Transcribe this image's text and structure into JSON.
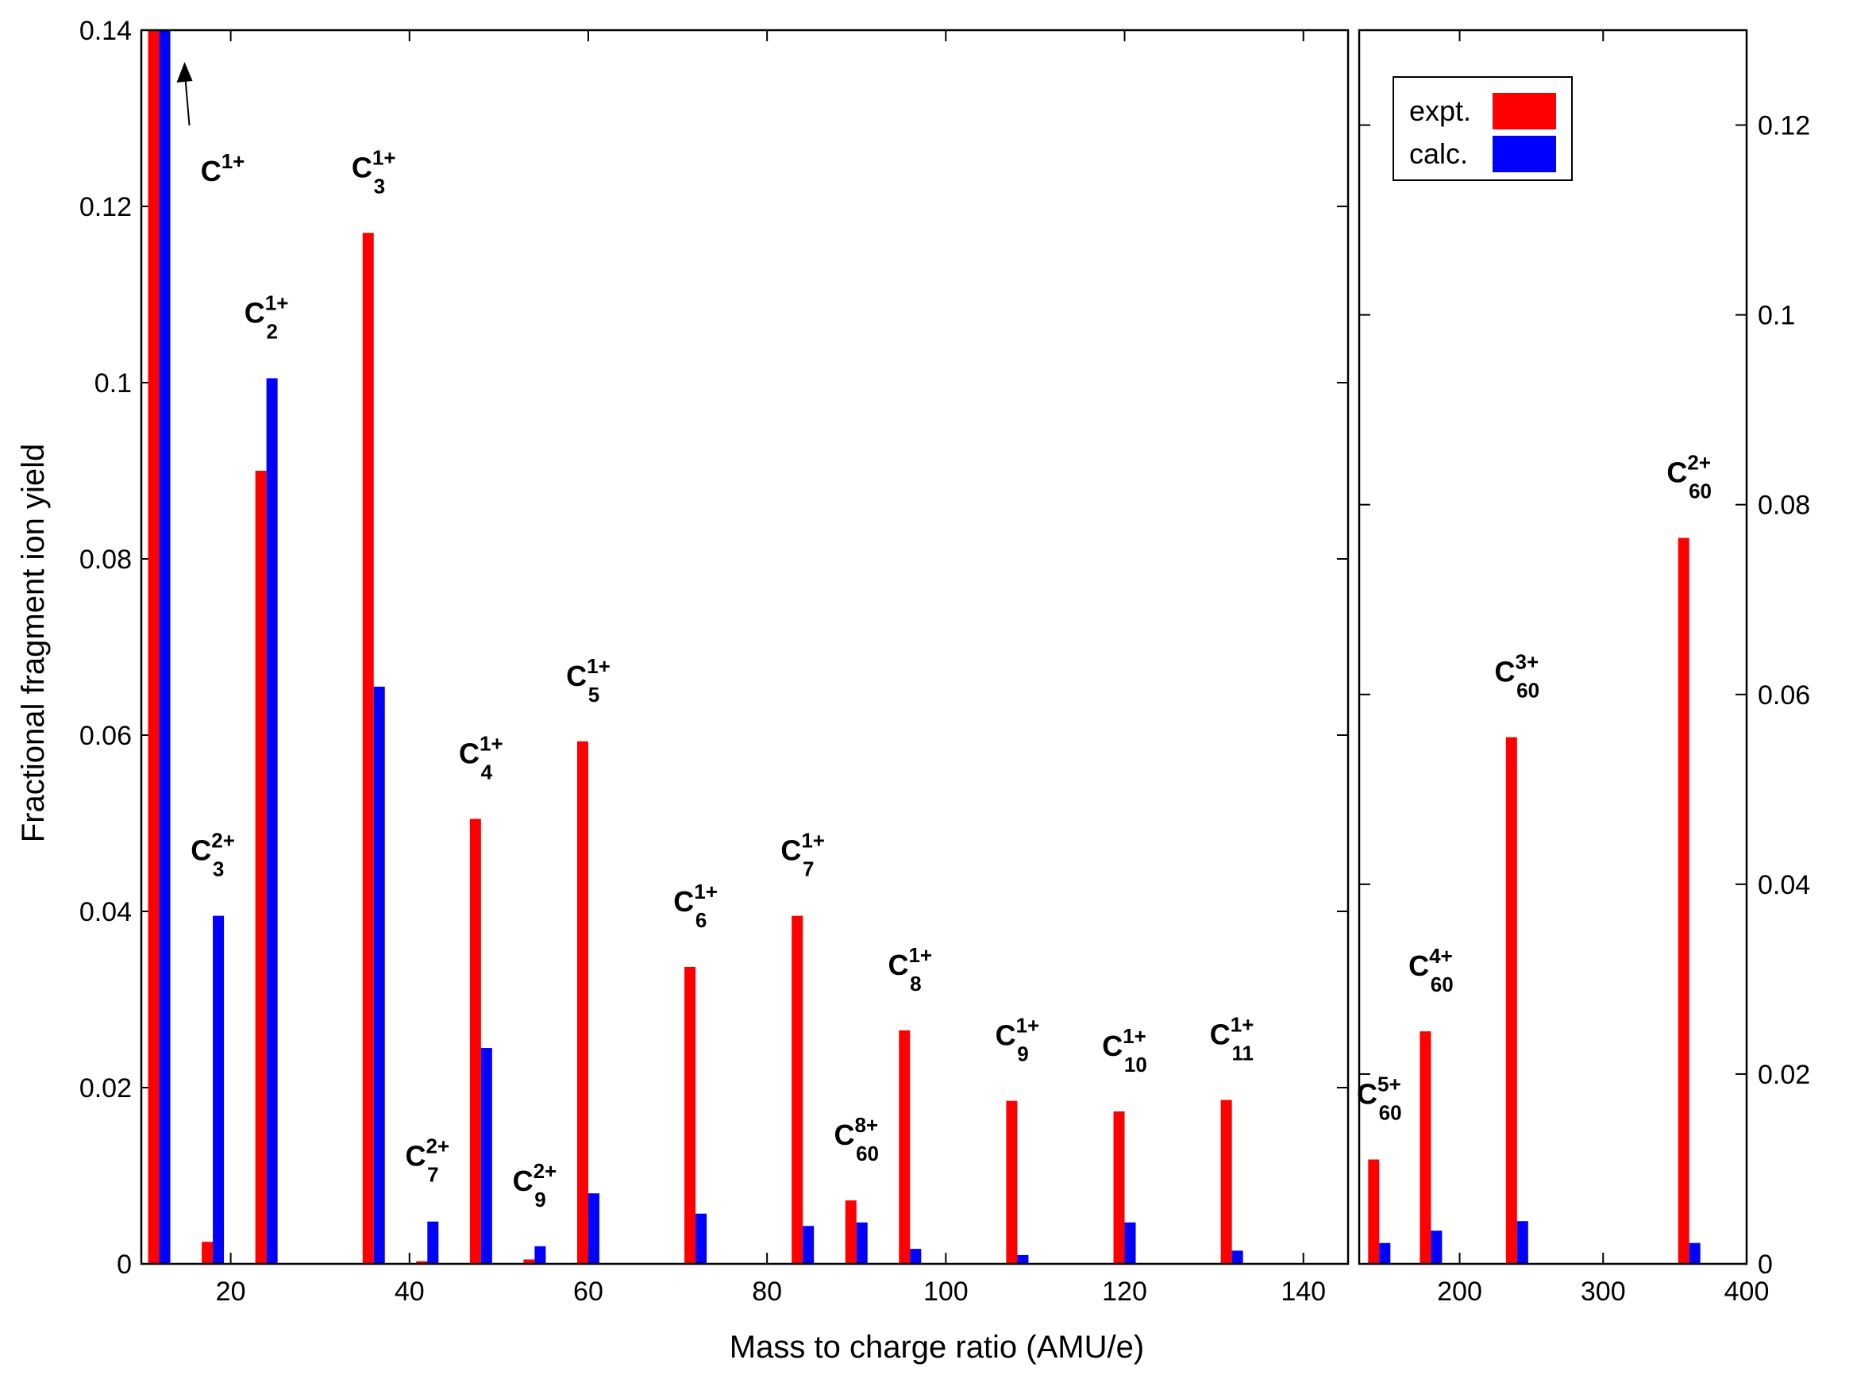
{
  "chart_data": {
    "type": "bar",
    "xlabel": "Mass to charge ratio (AMU/e)",
    "ylabel": "Fractional fragment ion yield",
    "legend": {
      "placement": "top-right",
      "entries": [
        {
          "name": "expt.",
          "color": "#ff0000"
        },
        {
          "name": "calc.",
          "color": "#0000ff"
        }
      ]
    },
    "left_panel": {
      "xlim": [
        10,
        145
      ],
      "ylim": [
        0,
        0.14
      ],
      "xticks": [
        20,
        40,
        60,
        80,
        100,
        120,
        140
      ],
      "yticks": [
        0,
        0.02,
        0.04,
        0.06,
        0.08,
        0.1,
        0.12,
        0.14
      ],
      "ytick_labels": [
        "0",
        "0.02",
        "0.04",
        "0.06",
        "0.08",
        "0.1",
        "0.12",
        "0.14"
      ],
      "points": [
        {
          "mz": 12,
          "expt": 0.14,
          "calc": 0.14,
          "ion": "C",
          "sub": "",
          "sup": "1+",
          "arrow": true
        },
        {
          "mz": 18,
          "expt": 0.0025,
          "calc": 0.0395,
          "ion": "C",
          "sub": "3",
          "sup": "2+"
        },
        {
          "mz": 24,
          "expt": 0.09,
          "calc": 0.1005,
          "ion": "C",
          "sub": "2",
          "sup": "1+"
        },
        {
          "mz": 36,
          "expt": 0.117,
          "calc": 0.0655,
          "ion": "C",
          "sub": "3",
          "sup": "1+"
        },
        {
          "mz": 42,
          "expt": 0.0003,
          "calc": 0.0048,
          "ion": "C",
          "sub": "7",
          "sup": "2+"
        },
        {
          "mz": 48,
          "expt": 0.0505,
          "calc": 0.0245,
          "ion": "C",
          "sub": "4",
          "sup": "1+"
        },
        {
          "mz": 54,
          "expt": 0.0005,
          "calc": 0.002,
          "ion": "C",
          "sub": "9",
          "sup": "2+"
        },
        {
          "mz": 60,
          "expt": 0.0593,
          "calc": 0.008,
          "ion": "C",
          "sub": "5",
          "sup": "1+"
        },
        {
          "mz": 72,
          "expt": 0.0337,
          "calc": 0.0057,
          "ion": "C",
          "sub": "6",
          "sup": "1+"
        },
        {
          "mz": 84,
          "expt": 0.0395,
          "calc": 0.0043,
          "ion": "C",
          "sub": "7",
          "sup": "1+"
        },
        {
          "mz": 90,
          "expt": 0.0072,
          "calc": 0.0047,
          "ion": "C",
          "sub": "60",
          "sup": "8+"
        },
        {
          "mz": 96,
          "expt": 0.0265,
          "calc": 0.0017,
          "ion": "C",
          "sub": "8",
          "sup": "1+"
        },
        {
          "mz": 108,
          "expt": 0.0185,
          "calc": 0.001,
          "ion": "C",
          "sub": "9",
          "sup": "1+"
        },
        {
          "mz": 120,
          "expt": 0.0173,
          "calc": 0.0047,
          "ion": "C",
          "sub": "10",
          "sup": "1+"
        },
        {
          "mz": 132,
          "expt": 0.0186,
          "calc": 0.0015,
          "ion": "C",
          "sub": "11",
          "sup": "1+"
        }
      ]
    },
    "right_panel": {
      "xlim": [
        130,
        400
      ],
      "ylim": [
        0,
        0.13
      ],
      "xticks": [
        200,
        300,
        400
      ],
      "yticks": [
        0,
        0.02,
        0.04,
        0.06,
        0.08,
        0.1,
        0.12
      ],
      "ytick_labels": [
        "0",
        "0.02",
        "0.04",
        "0.06",
        "0.08",
        "0.1",
        "0.12"
      ],
      "points": [
        {
          "mz": 144,
          "expt": 0.011,
          "calc": 0.0022,
          "ion": "C",
          "sub": "60",
          "sup": "5+"
        },
        {
          "mz": 180,
          "expt": 0.0245,
          "calc": 0.0035,
          "ion": "C",
          "sub": "60",
          "sup": "4+"
        },
        {
          "mz": 240,
          "expt": 0.0555,
          "calc": 0.0045,
          "ion": "C",
          "sub": "60",
          "sup": "3+"
        },
        {
          "mz": 360,
          "expt": 0.0765,
          "calc": 0.0022,
          "ion": "C",
          "sub": "60",
          "sup": "2+"
        }
      ]
    }
  }
}
